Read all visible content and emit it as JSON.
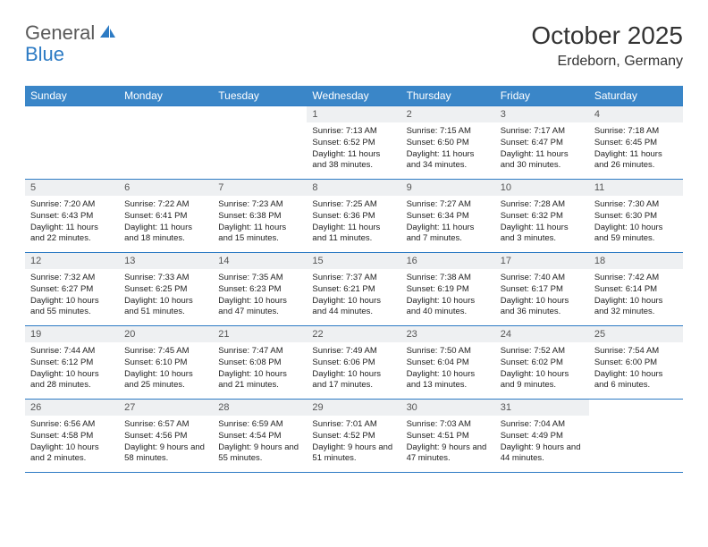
{
  "logo": {
    "text1": "General",
    "text2": "Blue"
  },
  "title": "October 2025",
  "location": "Erdeborn, Germany",
  "colors": {
    "header_bg": "#3a86c8",
    "header_text": "#ffffff",
    "rule": "#2d7bc4",
    "daynum_bg": "#eef0f2",
    "text": "#222222",
    "logo_gray": "#5a5a5a",
    "logo_blue": "#2d7bc4",
    "page_bg": "#ffffff"
  },
  "day_names": [
    "Sunday",
    "Monday",
    "Tuesday",
    "Wednesday",
    "Thursday",
    "Friday",
    "Saturday"
  ],
  "weeks": [
    [
      {
        "n": "",
        "sr": "",
        "ss": "",
        "dl": ""
      },
      {
        "n": "",
        "sr": "",
        "ss": "",
        "dl": ""
      },
      {
        "n": "",
        "sr": "",
        "ss": "",
        "dl": ""
      },
      {
        "n": "1",
        "sr": "Sunrise: 7:13 AM",
        "ss": "Sunset: 6:52 PM",
        "dl": "Daylight: 11 hours and 38 minutes."
      },
      {
        "n": "2",
        "sr": "Sunrise: 7:15 AM",
        "ss": "Sunset: 6:50 PM",
        "dl": "Daylight: 11 hours and 34 minutes."
      },
      {
        "n": "3",
        "sr": "Sunrise: 7:17 AM",
        "ss": "Sunset: 6:47 PM",
        "dl": "Daylight: 11 hours and 30 minutes."
      },
      {
        "n": "4",
        "sr": "Sunrise: 7:18 AM",
        "ss": "Sunset: 6:45 PM",
        "dl": "Daylight: 11 hours and 26 minutes."
      }
    ],
    [
      {
        "n": "5",
        "sr": "Sunrise: 7:20 AM",
        "ss": "Sunset: 6:43 PM",
        "dl": "Daylight: 11 hours and 22 minutes."
      },
      {
        "n": "6",
        "sr": "Sunrise: 7:22 AM",
        "ss": "Sunset: 6:41 PM",
        "dl": "Daylight: 11 hours and 18 minutes."
      },
      {
        "n": "7",
        "sr": "Sunrise: 7:23 AM",
        "ss": "Sunset: 6:38 PM",
        "dl": "Daylight: 11 hours and 15 minutes."
      },
      {
        "n": "8",
        "sr": "Sunrise: 7:25 AM",
        "ss": "Sunset: 6:36 PM",
        "dl": "Daylight: 11 hours and 11 minutes."
      },
      {
        "n": "9",
        "sr": "Sunrise: 7:27 AM",
        "ss": "Sunset: 6:34 PM",
        "dl": "Daylight: 11 hours and 7 minutes."
      },
      {
        "n": "10",
        "sr": "Sunrise: 7:28 AM",
        "ss": "Sunset: 6:32 PM",
        "dl": "Daylight: 11 hours and 3 minutes."
      },
      {
        "n": "11",
        "sr": "Sunrise: 7:30 AM",
        "ss": "Sunset: 6:30 PM",
        "dl": "Daylight: 10 hours and 59 minutes."
      }
    ],
    [
      {
        "n": "12",
        "sr": "Sunrise: 7:32 AM",
        "ss": "Sunset: 6:27 PM",
        "dl": "Daylight: 10 hours and 55 minutes."
      },
      {
        "n": "13",
        "sr": "Sunrise: 7:33 AM",
        "ss": "Sunset: 6:25 PM",
        "dl": "Daylight: 10 hours and 51 minutes."
      },
      {
        "n": "14",
        "sr": "Sunrise: 7:35 AM",
        "ss": "Sunset: 6:23 PM",
        "dl": "Daylight: 10 hours and 47 minutes."
      },
      {
        "n": "15",
        "sr": "Sunrise: 7:37 AM",
        "ss": "Sunset: 6:21 PM",
        "dl": "Daylight: 10 hours and 44 minutes."
      },
      {
        "n": "16",
        "sr": "Sunrise: 7:38 AM",
        "ss": "Sunset: 6:19 PM",
        "dl": "Daylight: 10 hours and 40 minutes."
      },
      {
        "n": "17",
        "sr": "Sunrise: 7:40 AM",
        "ss": "Sunset: 6:17 PM",
        "dl": "Daylight: 10 hours and 36 minutes."
      },
      {
        "n": "18",
        "sr": "Sunrise: 7:42 AM",
        "ss": "Sunset: 6:14 PM",
        "dl": "Daylight: 10 hours and 32 minutes."
      }
    ],
    [
      {
        "n": "19",
        "sr": "Sunrise: 7:44 AM",
        "ss": "Sunset: 6:12 PM",
        "dl": "Daylight: 10 hours and 28 minutes."
      },
      {
        "n": "20",
        "sr": "Sunrise: 7:45 AM",
        "ss": "Sunset: 6:10 PM",
        "dl": "Daylight: 10 hours and 25 minutes."
      },
      {
        "n": "21",
        "sr": "Sunrise: 7:47 AM",
        "ss": "Sunset: 6:08 PM",
        "dl": "Daylight: 10 hours and 21 minutes."
      },
      {
        "n": "22",
        "sr": "Sunrise: 7:49 AM",
        "ss": "Sunset: 6:06 PM",
        "dl": "Daylight: 10 hours and 17 minutes."
      },
      {
        "n": "23",
        "sr": "Sunrise: 7:50 AM",
        "ss": "Sunset: 6:04 PM",
        "dl": "Daylight: 10 hours and 13 minutes."
      },
      {
        "n": "24",
        "sr": "Sunrise: 7:52 AM",
        "ss": "Sunset: 6:02 PM",
        "dl": "Daylight: 10 hours and 9 minutes."
      },
      {
        "n": "25",
        "sr": "Sunrise: 7:54 AM",
        "ss": "Sunset: 6:00 PM",
        "dl": "Daylight: 10 hours and 6 minutes."
      }
    ],
    [
      {
        "n": "26",
        "sr": "Sunrise: 6:56 AM",
        "ss": "Sunset: 4:58 PM",
        "dl": "Daylight: 10 hours and 2 minutes."
      },
      {
        "n": "27",
        "sr": "Sunrise: 6:57 AM",
        "ss": "Sunset: 4:56 PM",
        "dl": "Daylight: 9 hours and 58 minutes."
      },
      {
        "n": "28",
        "sr": "Sunrise: 6:59 AM",
        "ss": "Sunset: 4:54 PM",
        "dl": "Daylight: 9 hours and 55 minutes."
      },
      {
        "n": "29",
        "sr": "Sunrise: 7:01 AM",
        "ss": "Sunset: 4:52 PM",
        "dl": "Daylight: 9 hours and 51 minutes."
      },
      {
        "n": "30",
        "sr": "Sunrise: 7:03 AM",
        "ss": "Sunset: 4:51 PM",
        "dl": "Daylight: 9 hours and 47 minutes."
      },
      {
        "n": "31",
        "sr": "Sunrise: 7:04 AM",
        "ss": "Sunset: 4:49 PM",
        "dl": "Daylight: 9 hours and 44 minutes."
      },
      {
        "n": "",
        "sr": "",
        "ss": "",
        "dl": ""
      }
    ]
  ]
}
